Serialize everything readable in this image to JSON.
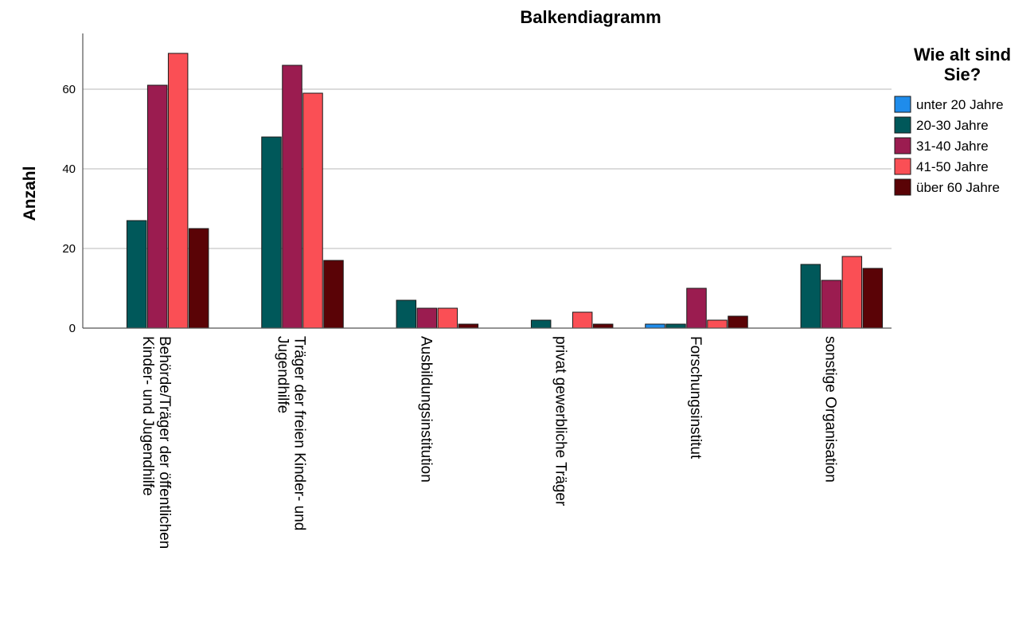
{
  "chart_data": {
    "type": "bar",
    "title": "Balkendiagramm",
    "xlabel": "",
    "ylabel": "Anzahl",
    "ylim": [
      0,
      74
    ],
    "yticks": [
      0,
      20,
      40,
      60
    ],
    "grid": true,
    "legend_position": "top-right",
    "legend_title_lines": [
      "Wie alt sind",
      "Sie?"
    ],
    "categories": [
      [
        "Behörde/Träger der öffentlichen",
        "Kinder- und Jugendhilfe"
      ],
      [
        "Träger der freien Kinder- und",
        "Jugendhilfe"
      ],
      [
        "Ausbildungsinstitution"
      ],
      [
        "privat gewerbliche Träger"
      ],
      [
        "Forschungsinstitut"
      ],
      [
        "sonstige Organisation"
      ]
    ],
    "series": [
      {
        "name": "unter 20 Jahre",
        "color": "#1f8ceb",
        "values": [
          0,
          0,
          0,
          0,
          1,
          0
        ]
      },
      {
        "name": "20-30 Jahre",
        "color": "#00585a",
        "values": [
          27,
          48,
          7,
          2,
          1,
          16
        ]
      },
      {
        "name": "31-40 Jahre",
        "color": "#9b1c50",
        "values": [
          61,
          66,
          5,
          0,
          10,
          12
        ]
      },
      {
        "name": "41-50 Jahre",
        "color": "#fa4f55",
        "values": [
          69,
          59,
          5,
          4,
          2,
          18
        ]
      },
      {
        "name": "über 60 Jahre",
        "color": "#5a0306",
        "values": [
          25,
          17,
          1,
          1,
          3,
          15
        ]
      }
    ]
  }
}
